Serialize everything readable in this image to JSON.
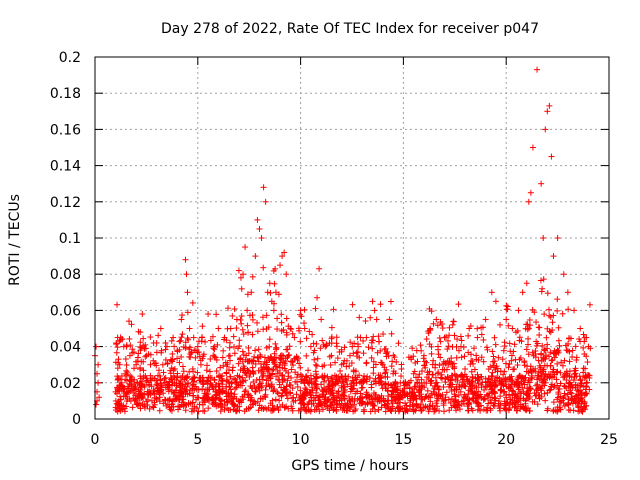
{
  "chart_data": {
    "type": "scatter",
    "title": "Day 278 of 2022, Rate Of TEC Index for receiver p047",
    "xlabel": "GPS time / hours",
    "ylabel": "ROTI / TECUs",
    "xlim": [
      0,
      25
    ],
    "ylim": [
      0,
      0.2
    ],
    "xticks": [
      0,
      5,
      10,
      15,
      20,
      25
    ],
    "xtick_labels": [
      "0",
      "5",
      "10",
      "15",
      "20",
      "25"
    ],
    "yticks": [
      0,
      0.02,
      0.04,
      0.06,
      0.08,
      0.1,
      0.12,
      0.14,
      0.16,
      0.18,
      0.2
    ],
    "ytick_labels": [
      "0",
      "0.02",
      "0.04",
      "0.06",
      "0.08",
      "0.1",
      "0.12",
      "0.14",
      "0.16",
      "0.18",
      "0.2"
    ],
    "grid": true,
    "marker": "+",
    "series": [
      {
        "name": "ROTI p047",
        "color": "#ff0000",
        "x": [
          0.0,
          0.05,
          0.1,
          0.15,
          0.2,
          0.05,
          0.1,
          0.1,
          0.15,
          1.0,
          1.1,
          1.2,
          1.3,
          1.4,
          1.5,
          1.6,
          1.7,
          1.8,
          1.9,
          2.0,
          2.2,
          2.3,
          2.5,
          2.7,
          3.0,
          3.2,
          3.5,
          3.8,
          4.0,
          4.2,
          4.4,
          4.45,
          4.5,
          4.6,
          4.8,
          5.0,
          5.2,
          5.5,
          5.8,
          6.0,
          6.3,
          6.6,
          6.9,
          7.0,
          7.1,
          7.2,
          7.3,
          7.4,
          7.6,
          7.8,
          7.9,
          8.0,
          8.1,
          8.2,
          8.3,
          8.4,
          8.5,
          8.6,
          8.7,
          8.8,
          9.0,
          9.1,
          9.2,
          9.3,
          9.5,
          9.7,
          10.0,
          10.2,
          10.5,
          10.8,
          10.9,
          11.0,
          11.2,
          11.5,
          12.0,
          12.4,
          12.8,
          13.2,
          13.5,
          13.6,
          13.7,
          14.0,
          14.5,
          15.0,
          15.5,
          16.0,
          16.3,
          16.6,
          17.0,
          17.4,
          17.8,
          18.2,
          18.6,
          19.0,
          19.3,
          19.5,
          19.7,
          20.0,
          20.3,
          20.6,
          20.8,
          21.0,
          21.1,
          21.2,
          21.3,
          21.5,
          21.7,
          21.8,
          21.9,
          22.0,
          22.1,
          22.2,
          22.3,
          22.5,
          22.8,
          23.0,
          23.3,
          23.6,
          23.9,
          24.0
        ],
        "y": [
          0.035,
          0.04,
          0.01,
          0.02,
          0.012,
          0.008,
          0.025,
          0.015,
          0.03,
          0.015,
          0.045,
          0.03,
          0.02,
          0.04,
          0.025,
          0.018,
          0.035,
          0.022,
          0.028,
          0.03,
          0.048,
          0.058,
          0.035,
          0.03,
          0.042,
          0.05,
          0.04,
          0.045,
          0.038,
          0.055,
          0.088,
          0.08,
          0.07,
          0.05,
          0.045,
          0.04,
          0.045,
          0.058,
          0.04,
          0.05,
          0.045,
          0.05,
          0.055,
          0.082,
          0.078,
          0.08,
          0.095,
          0.06,
          0.07,
          0.09,
          0.11,
          0.105,
          0.1,
          0.128,
          0.12,
          0.07,
          0.075,
          0.065,
          0.06,
          0.07,
          0.085,
          0.09,
          0.092,
          0.08,
          0.05,
          0.045,
          0.06,
          0.05,
          0.04,
          0.067,
          0.083,
          0.055,
          0.04,
          0.035,
          0.03,
          0.035,
          0.04,
          0.045,
          0.065,
          0.06,
          0.055,
          0.03,
          0.025,
          0.02,
          0.025,
          0.035,
          0.05,
          0.055,
          0.045,
          0.052,
          0.04,
          0.05,
          0.045,
          0.055,
          0.07,
          0.065,
          0.052,
          0.055,
          0.05,
          0.06,
          0.07,
          0.075,
          0.12,
          0.125,
          0.15,
          0.193,
          0.13,
          0.1,
          0.16,
          0.17,
          0.173,
          0.145,
          0.09,
          0.1,
          0.08,
          0.07,
          0.06,
          0.05,
          0.045,
          0.04
        ]
      }
    ]
  }
}
